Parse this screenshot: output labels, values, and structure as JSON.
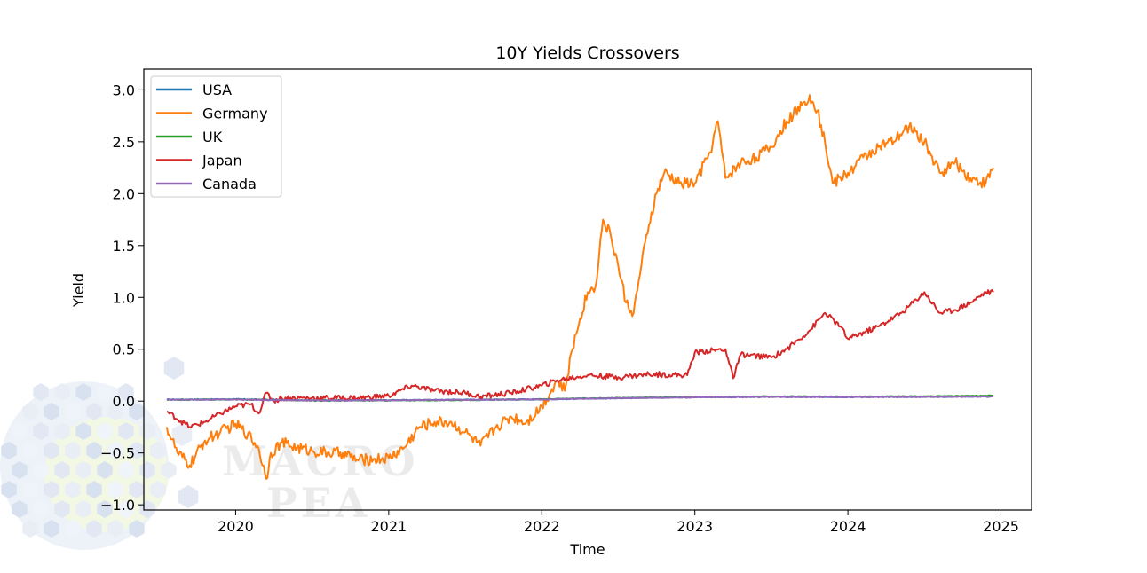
{
  "watermark": {
    "line1": "MACRO",
    "line2": "PEA"
  },
  "chart_data": {
    "type": "line",
    "title": "10Y Yields Crossovers",
    "xlabel": "Time",
    "ylabel": "Yield",
    "xlim": [
      2019.4,
      2025.2
    ],
    "ylim": [
      -1.05,
      3.2
    ],
    "xticks": [
      2020,
      2021,
      2022,
      2023,
      2024,
      2025
    ],
    "xtick_labels": [
      "2020",
      "2021",
      "2022",
      "2023",
      "2024",
      "2025"
    ],
    "yticks": [
      -1.0,
      -0.5,
      0.0,
      0.5,
      1.0,
      1.5,
      2.0,
      2.5,
      3.0
    ],
    "ytick_labels": [
      "−1.0",
      "−0.5",
      "0.0",
      "0.5",
      "1.0",
      "1.5",
      "2.0",
      "2.5",
      "3.0"
    ],
    "legend_position": "top-left",
    "series": [
      {
        "name": "USA",
        "color": "#1f77b4",
        "x": [
          2019.55,
          2020.0,
          2020.5,
          2021.0,
          2021.5,
          2022.0,
          2022.5,
          2023.0,
          2023.5,
          2024.0,
          2024.5,
          2024.95
        ],
        "values": [
          0.015,
          0.018,
          0.008,
          0.009,
          0.013,
          0.017,
          0.03,
          0.038,
          0.042,
          0.04,
          0.042,
          0.045
        ]
      },
      {
        "name": "Germany",
        "color": "#ff7f0e",
        "x": [
          2019.55,
          2019.62,
          2019.7,
          2019.8,
          2019.9,
          2020.0,
          2020.08,
          2020.15,
          2020.2,
          2020.23,
          2020.3,
          2020.4,
          2020.5,
          2020.6,
          2020.7,
          2020.8,
          2020.9,
          2021.0,
          2021.1,
          2021.2,
          2021.3,
          2021.4,
          2021.5,
          2021.6,
          2021.7,
          2021.8,
          2021.9,
          2022.0,
          2022.1,
          2022.15,
          2022.2,
          2022.25,
          2022.3,
          2022.35,
          2022.4,
          2022.45,
          2022.5,
          2022.55,
          2022.6,
          2022.65,
          2022.7,
          2022.75,
          2022.8,
          2022.9,
          2023.0,
          2023.1,
          2023.15,
          2023.2,
          2023.3,
          2023.4,
          2023.5,
          2023.6,
          2023.7,
          2023.75,
          2023.8,
          2023.85,
          2023.9,
          2024.0,
          2024.1,
          2024.2,
          2024.3,
          2024.4,
          2024.5,
          2024.6,
          2024.7,
          2024.8,
          2024.9,
          2024.95
        ],
        "values": [
          -0.25,
          -0.5,
          -0.62,
          -0.38,
          -0.3,
          -0.22,
          -0.32,
          -0.45,
          -0.75,
          -0.5,
          -0.4,
          -0.45,
          -0.48,
          -0.5,
          -0.5,
          -0.57,
          -0.56,
          -0.55,
          -0.45,
          -0.25,
          -0.2,
          -0.2,
          -0.3,
          -0.43,
          -0.25,
          -0.15,
          -0.2,
          -0.05,
          0.2,
          0.1,
          0.5,
          0.8,
          1.05,
          1.1,
          1.75,
          1.6,
          1.3,
          0.95,
          0.85,
          1.3,
          1.7,
          2.0,
          2.2,
          2.1,
          2.1,
          2.4,
          2.7,
          2.15,
          2.3,
          2.35,
          2.45,
          2.7,
          2.85,
          2.95,
          2.8,
          2.5,
          2.1,
          2.2,
          2.35,
          2.45,
          2.5,
          2.65,
          2.5,
          2.2,
          2.3,
          2.15,
          2.1,
          2.25
        ]
      },
      {
        "name": "UK",
        "color": "#2ca02c",
        "x": [
          2019.55,
          2020.0,
          2020.5,
          2021.0,
          2021.5,
          2022.0,
          2022.5,
          2023.0,
          2023.5,
          2024.0,
          2024.5,
          2024.95
        ],
        "values": [
          0.012,
          0.016,
          0.005,
          0.006,
          0.01,
          0.018,
          0.03,
          0.04,
          0.045,
          0.043,
          0.046,
          0.052
        ]
      },
      {
        "name": "Japan",
        "color": "#d62728",
        "x": [
          2019.55,
          2019.7,
          2019.8,
          2019.9,
          2020.0,
          2020.1,
          2020.15,
          2020.2,
          2020.25,
          2020.3,
          2020.5,
          2020.8,
          2021.0,
          2021.15,
          2021.3,
          2021.5,
          2021.6,
          2021.8,
          2022.0,
          2022.1,
          2022.3,
          2022.5,
          2022.7,
          2022.95,
          2023.0,
          2023.2,
          2023.25,
          2023.3,
          2023.5,
          2023.6,
          2023.75,
          2023.85,
          2023.95,
          2024.0,
          2024.2,
          2024.35,
          2024.5,
          2024.6,
          2024.7,
          2024.8,
          2024.9,
          2024.95
        ],
        "values": [
          -0.1,
          -0.25,
          -0.2,
          -0.12,
          -0.05,
          -0.03,
          -0.12,
          0.08,
          0.0,
          0.03,
          0.03,
          0.03,
          0.05,
          0.15,
          0.1,
          0.08,
          0.04,
          0.08,
          0.15,
          0.2,
          0.25,
          0.23,
          0.26,
          0.25,
          0.47,
          0.5,
          0.22,
          0.45,
          0.42,
          0.5,
          0.68,
          0.85,
          0.72,
          0.6,
          0.72,
          0.85,
          1.05,
          0.85,
          0.88,
          0.95,
          1.05,
          1.05
        ]
      },
      {
        "name": "Canada",
        "color": "#9467bd",
        "x": [
          2019.55,
          2020.0,
          2020.5,
          2021.0,
          2021.5,
          2022.0,
          2022.5,
          2023.0,
          2023.5,
          2024.0,
          2024.5,
          2024.95
        ],
        "values": [
          0.014,
          0.015,
          0.006,
          0.008,
          0.012,
          0.016,
          0.028,
          0.036,
          0.04,
          0.038,
          0.04,
          0.043
        ]
      }
    ]
  }
}
